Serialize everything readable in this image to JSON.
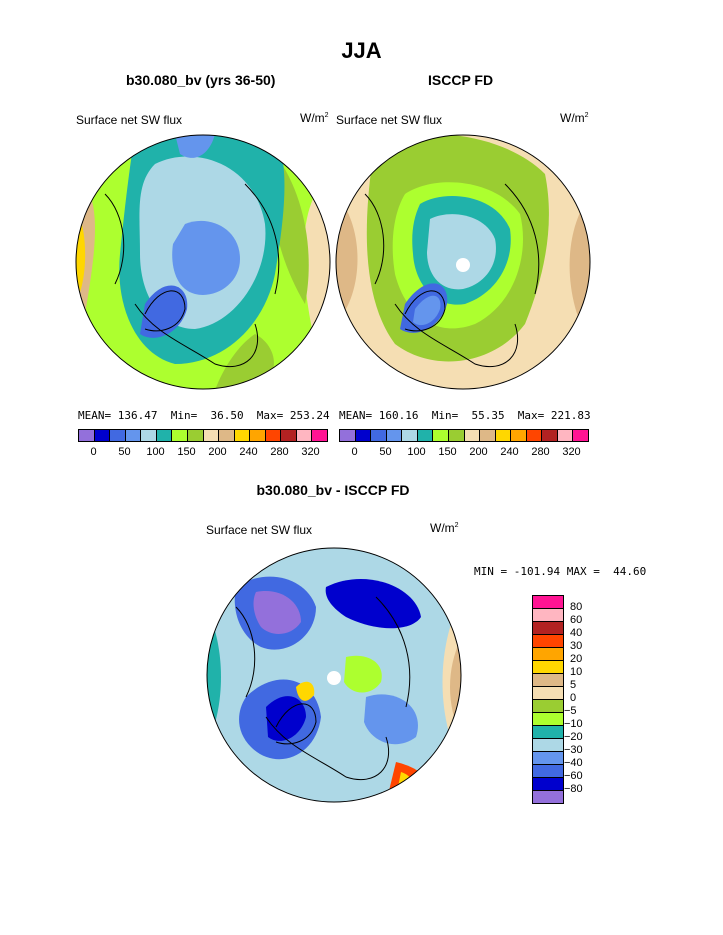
{
  "main_title": "JJA",
  "left_panel": {
    "title": "b30.080_bv (yrs 36-50)",
    "variable": "Surface net SW flux",
    "units_base": "W/m",
    "units_exp": "2",
    "stats": "MEAN= 136.47  Min=  36.50  Max= 253.24"
  },
  "right_panel": {
    "title": "ISCCP FD",
    "variable": "Surface net SW flux",
    "units_base": "W/m",
    "units_exp": "2",
    "stats": "MEAN= 160.16  Min=  55.35  Max= 221.83"
  },
  "diff_panel": {
    "title": "b30.080_bv - ISCCP FD",
    "variable": "Surface net SW flux",
    "units_base": "W/m",
    "units_exp": "2",
    "stats": "MIN = -101.94 MAX =  44.60"
  },
  "top_colorbar": {
    "colors": [
      "#9370db",
      "#0000cd",
      "#4169e1",
      "#6495ed",
      "#add8e6",
      "#20b2aa",
      "#adff2f",
      "#9acd32",
      "#f5deb3",
      "#deb887",
      "#ffd700",
      "#ffa500",
      "#ff4500",
      "#b22222",
      "#ffb6c1",
      "#ff1493"
    ],
    "labels": [
      "0",
      "50",
      "100",
      "150",
      "200",
      "240",
      "280",
      "320"
    ]
  },
  "diff_colorbar": {
    "colors": [
      "#ff1493",
      "#ffb6c1",
      "#b22222",
      "#ff4500",
      "#ffa500",
      "#ffd700",
      "#deb887",
      "#f5deb3",
      "#9acd32",
      "#adff2f",
      "#20b2aa",
      "#add8e6",
      "#6495ed",
      "#4169e1",
      "#0000cd",
      "#9370db"
    ],
    "labels": [
      "80",
      "60",
      "40",
      "30",
      "20",
      "10",
      "5",
      "0",
      "−5",
      "−10",
      "−20",
      "−30",
      "−40",
      "−60",
      "−80"
    ]
  }
}
